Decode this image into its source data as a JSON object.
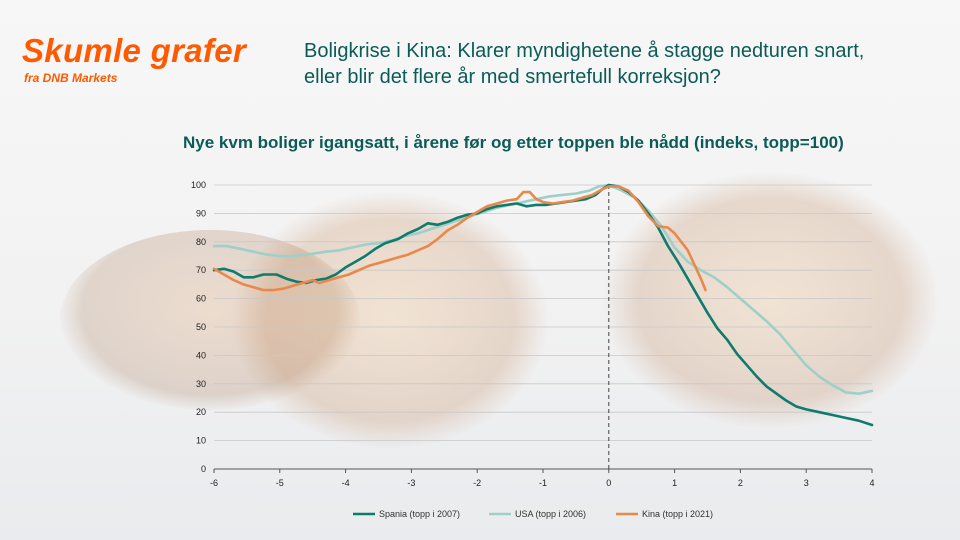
{
  "brand": {
    "title": "Skumle grafer",
    "subtitle": "fra DNB Markets"
  },
  "headline": {
    "line1": "Boligkrise  i Kina: Klarer myndighetene å stagge nedturen snart,",
    "line2": "eller blir det flere år med smertefull korreksjon?"
  },
  "colors": {
    "brand": "#ff5a00",
    "headline": "#0b5b57"
  },
  "chart_data": {
    "type": "line",
    "title": "Nye kvm boliger igangsatt, i årene før og etter toppen ble nådd (indeks, topp=100)",
    "xlabel": "",
    "ylabel": "",
    "xlim": [
      -6,
      4
    ],
    "ylim": [
      0,
      100
    ],
    "x_ticks": [
      -6,
      -5,
      -4,
      -3,
      -2,
      -1,
      0,
      1,
      2,
      3,
      4
    ],
    "y_ticks": [
      0,
      10,
      20,
      30,
      40,
      50,
      60,
      70,
      80,
      90,
      100
    ],
    "grid": "horizontal",
    "reference_line": {
      "x": 0,
      "style": "dashed"
    },
    "legend_position": "bottom",
    "series": [
      {
        "name": "Spania (topp i 2007)",
        "color": "#0f7b6c",
        "points": [
          [
            -6,
            70
          ],
          [
            -5.85,
            70.5
          ],
          [
            -5.7,
            69.5
          ],
          [
            -5.55,
            67.5
          ],
          [
            -5.4,
            67.5
          ],
          [
            -5.25,
            68.5
          ],
          [
            -5.05,
            68.5
          ],
          [
            -4.9,
            67
          ],
          [
            -4.75,
            66
          ],
          [
            -4.6,
            65.5
          ],
          [
            -4.45,
            66.5
          ],
          [
            -4.3,
            67
          ],
          [
            -4.15,
            68.5
          ],
          [
            -4.0,
            71
          ],
          [
            -3.85,
            73
          ],
          [
            -3.7,
            75
          ],
          [
            -3.55,
            77.5
          ],
          [
            -3.4,
            79.5
          ],
          [
            -3.2,
            81
          ],
          [
            -3.05,
            83
          ],
          [
            -2.9,
            84.5
          ],
          [
            -2.75,
            86.5
          ],
          [
            -2.6,
            86
          ],
          [
            -2.45,
            87
          ],
          [
            -2.3,
            88.5
          ],
          [
            -2.15,
            89.5
          ],
          [
            -2.0,
            90
          ],
          [
            -1.85,
            91.5
          ],
          [
            -1.7,
            92.5
          ],
          [
            -1.55,
            93
          ],
          [
            -1.4,
            93.5
          ],
          [
            -1.25,
            92.5
          ],
          [
            -1.1,
            93
          ],
          [
            -0.95,
            93
          ],
          [
            -0.8,
            93.5
          ],
          [
            -0.65,
            94
          ],
          [
            -0.5,
            94.5
          ],
          [
            -0.35,
            95
          ],
          [
            -0.2,
            96.5
          ],
          [
            -0.1,
            98.5
          ],
          [
            0,
            100
          ],
          [
            0.15,
            99.5
          ],
          [
            0.3,
            97.5
          ],
          [
            0.45,
            94.5
          ],
          [
            0.6,
            90
          ],
          [
            0.75,
            85
          ],
          [
            0.9,
            78.5
          ],
          [
            1.05,
            73
          ],
          [
            1.2,
            67
          ],
          [
            1.35,
            61
          ],
          [
            1.5,
            55
          ],
          [
            1.65,
            49.5
          ],
          [
            1.8,
            45.5
          ],
          [
            1.95,
            40.5
          ],
          [
            2.1,
            36.5
          ],
          [
            2.25,
            32.5
          ],
          [
            2.4,
            29
          ],
          [
            2.55,
            26.5
          ],
          [
            2.7,
            24
          ],
          [
            2.85,
            22
          ],
          [
            3.0,
            21
          ],
          [
            3.2,
            20
          ],
          [
            3.4,
            19
          ],
          [
            3.6,
            18
          ],
          [
            3.8,
            17
          ],
          [
            4.0,
            15.5
          ]
        ]
      },
      {
        "name": "USA (topp i 2006)",
        "color": "#9fcfc8",
        "points": [
          [
            -6,
            78.5
          ],
          [
            -5.8,
            78.5
          ],
          [
            -5.6,
            77.5
          ],
          [
            -5.4,
            76.5
          ],
          [
            -5.2,
            75.5
          ],
          [
            -5.0,
            75
          ],
          [
            -4.8,
            75
          ],
          [
            -4.6,
            75.5
          ],
          [
            -4.45,
            76
          ],
          [
            -4.3,
            76.5
          ],
          [
            -4.1,
            77
          ],
          [
            -3.9,
            78
          ],
          [
            -3.7,
            79
          ],
          [
            -3.5,
            79.5
          ],
          [
            -3.3,
            80.5
          ],
          [
            -3.1,
            82
          ],
          [
            -2.9,
            83
          ],
          [
            -2.7,
            84.5
          ],
          [
            -2.5,
            86
          ],
          [
            -2.3,
            87.5
          ],
          [
            -2.1,
            89
          ],
          [
            -1.9,
            90.5
          ],
          [
            -1.7,
            92
          ],
          [
            -1.5,
            93
          ],
          [
            -1.3,
            94
          ],
          [
            -1.1,
            95
          ],
          [
            -0.9,
            96
          ],
          [
            -0.7,
            96.5
          ],
          [
            -0.5,
            97
          ],
          [
            -0.3,
            98
          ],
          [
            -0.15,
            99.5
          ],
          [
            0,
            100
          ],
          [
            0.2,
            98
          ],
          [
            0.4,
            95.5
          ],
          [
            0.6,
            91
          ],
          [
            0.8,
            85.5
          ],
          [
            1.0,
            78
          ],
          [
            1.2,
            73
          ],
          [
            1.4,
            70
          ],
          [
            1.6,
            67.5
          ],
          [
            1.8,
            64
          ],
          [
            2.0,
            60
          ],
          [
            2.2,
            56
          ],
          [
            2.4,
            52
          ],
          [
            2.6,
            47.5
          ],
          [
            2.8,
            42
          ],
          [
            3.0,
            36.5
          ],
          [
            3.2,
            32.5
          ],
          [
            3.4,
            29.5
          ],
          [
            3.6,
            27
          ],
          [
            3.8,
            26.5
          ],
          [
            4.0,
            27.5
          ]
        ]
      },
      {
        "name": "Kina (topp i 2021)",
        "color": "#e8894b",
        "points": [
          [
            -6,
            70.5
          ],
          [
            -5.85,
            68.5
          ],
          [
            -5.7,
            66.5
          ],
          [
            -5.55,
            65
          ],
          [
            -5.4,
            64
          ],
          [
            -5.25,
            63
          ],
          [
            -5.1,
            63
          ],
          [
            -4.95,
            63.5
          ],
          [
            -4.8,
            64.5
          ],
          [
            -4.65,
            65.5
          ],
          [
            -4.5,
            66.5
          ],
          [
            -4.4,
            65.5
          ],
          [
            -4.25,
            66.5
          ],
          [
            -4.1,
            67.5
          ],
          [
            -3.95,
            68.5
          ],
          [
            -3.8,
            70
          ],
          [
            -3.65,
            71.5
          ],
          [
            -3.5,
            72.5
          ],
          [
            -3.35,
            73.5
          ],
          [
            -3.2,
            74.5
          ],
          [
            -3.05,
            75.5
          ],
          [
            -2.9,
            77
          ],
          [
            -2.75,
            78.5
          ],
          [
            -2.6,
            81
          ],
          [
            -2.45,
            84
          ],
          [
            -2.3,
            86
          ],
          [
            -2.15,
            88.5
          ],
          [
            -2.0,
            90.5
          ],
          [
            -1.85,
            92.5
          ],
          [
            -1.7,
            93.5
          ],
          [
            -1.55,
            94.5
          ],
          [
            -1.4,
            95
          ],
          [
            -1.3,
            97.5
          ],
          [
            -1.2,
            97.5
          ],
          [
            -1.1,
            95
          ],
          [
            -1.0,
            94
          ],
          [
            -0.85,
            93.5
          ],
          [
            -0.7,
            94
          ],
          [
            -0.55,
            94.5
          ],
          [
            -0.4,
            95.5
          ],
          [
            -0.25,
            96.5
          ],
          [
            -0.1,
            98.5
          ],
          [
            0,
            99.5
          ],
          [
            0.15,
            99.5
          ],
          [
            0.3,
            98
          ],
          [
            0.45,
            94
          ],
          [
            0.6,
            89
          ],
          [
            0.75,
            85.5
          ],
          [
            0.9,
            85
          ],
          [
            1.0,
            83
          ],
          [
            1.1,
            80
          ],
          [
            1.2,
            77
          ],
          [
            1.3,
            72
          ],
          [
            1.4,
            67
          ],
          [
            1.47,
            63
          ]
        ]
      }
    ]
  }
}
